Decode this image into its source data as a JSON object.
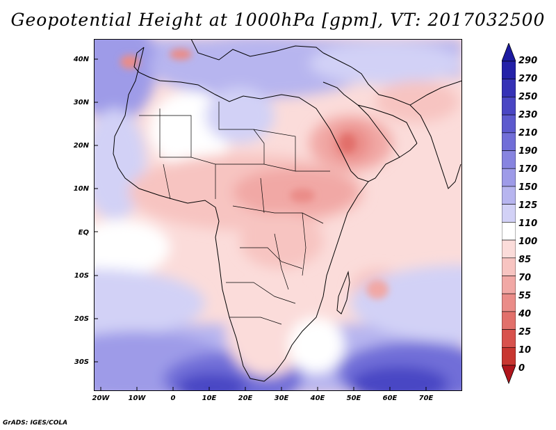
{
  "title": "Geopotential Height at 1000hPa [gpm], VT: 2017032500",
  "map": {
    "lat_labels": [
      "40N",
      "30N",
      "20N",
      "10N",
      "EQ",
      "10S",
      "20S",
      "30S"
    ],
    "lon_labels": [
      "20W",
      "10W",
      "0",
      "10E",
      "20E",
      "30E",
      "40E",
      "50E",
      "60E",
      "70E"
    ],
    "lat_range": [
      -37,
      44
    ],
    "lon_range": [
      -23,
      79
    ]
  },
  "colorbar": {
    "levels": [
      "290",
      "270",
      "250",
      "230",
      "210",
      "190",
      "170",
      "150",
      "125",
      "110",
      "100",
      "85",
      "70",
      "55",
      "40",
      "25",
      "10",
      "0"
    ],
    "colors": {
      "top_arrow": "#1c1aa0",
      "bottom_arrow": "#b0151c",
      "bands": [
        "#2421a8",
        "#3531b6",
        "#4a46c4",
        "#5d5ace",
        "#716ed8",
        "#8784e0",
        "#9e9be8",
        "#b7b5ef",
        "#d2d1f6",
        "#ffffff",
        "#fbdcda",
        "#f7c4c1",
        "#f1a8a5",
        "#ea8c88",
        "#e2706b",
        "#d8524d",
        "#c83630"
      ]
    }
  },
  "credit": "GrADS: IGES/COLA"
}
